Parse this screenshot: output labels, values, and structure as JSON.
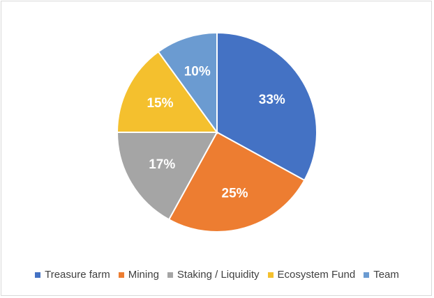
{
  "chart_data": {
    "type": "pie",
    "categories": [
      "Treasure farm",
      "Mining",
      "Staking / Liquidity",
      "Ecosystem Fund",
      "Team"
    ],
    "values": [
      33,
      25,
      17,
      15,
      10
    ],
    "labels": [
      "33%",
      "25%",
      "17%",
      "15%",
      "10%"
    ],
    "colors": [
      "#4472c4",
      "#ed7d31",
      "#a5a5a5",
      "#f4c02e",
      "#6b9bd1"
    ],
    "legend_position": "bottom",
    "start_angle": "12 o'clock",
    "direction": "clockwise"
  }
}
